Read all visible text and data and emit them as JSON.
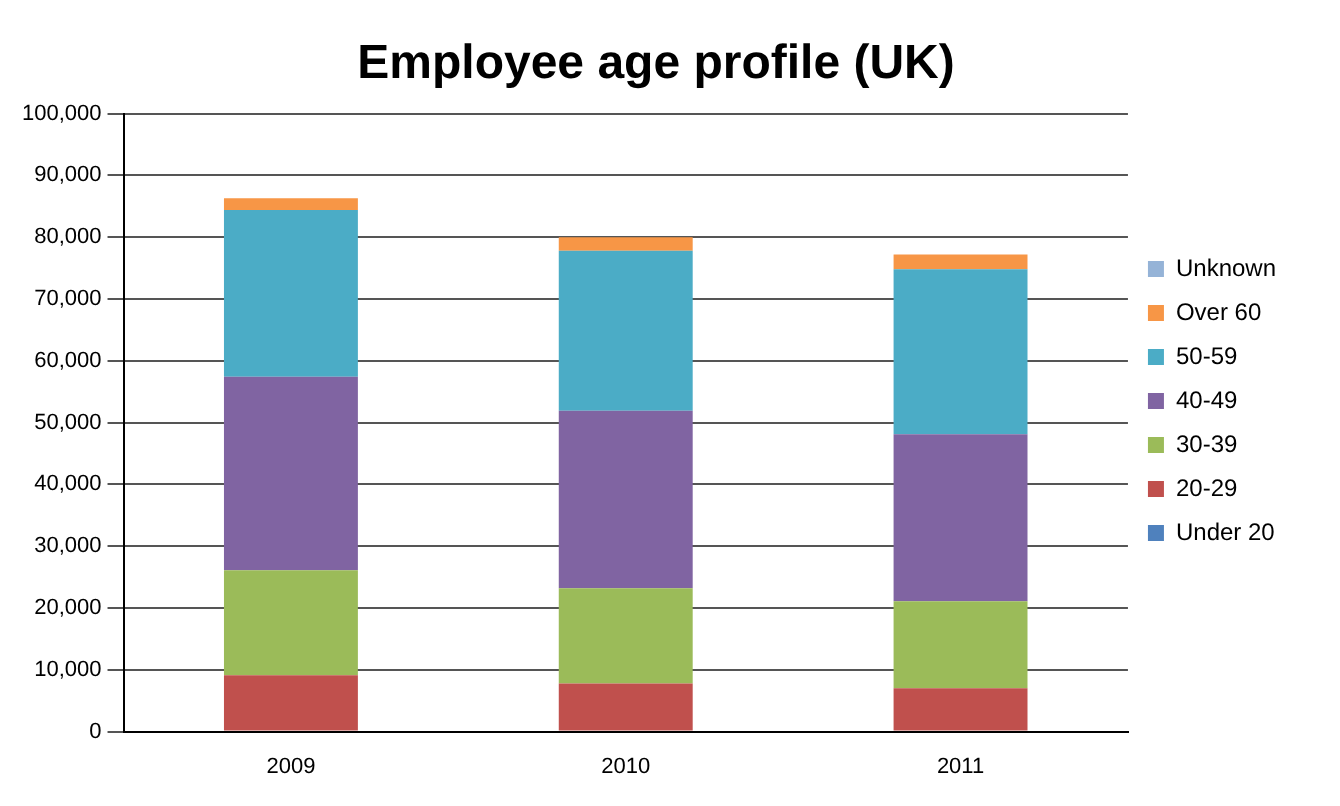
{
  "chart_data": {
    "type": "bar",
    "title": "Employee age profile (UK)",
    "categories": [
      "2009",
      "2010",
      "2011"
    ],
    "stacked": true,
    "series": [
      {
        "name": "Under 20",
        "color": "#4f81bd",
        "values": [
          0,
          0,
          0
        ]
      },
      {
        "name": "20-29",
        "color": "#c0504d",
        "values": [
          9100,
          7800,
          7000
        ]
      },
      {
        "name": "30-39",
        "color": "#9bbb59",
        "values": [
          17000,
          15400,
          14100
        ]
      },
      {
        "name": "40-49",
        "color": "#8064a2",
        "values": [
          31300,
          28700,
          27000
        ]
      },
      {
        "name": "50-59",
        "color": "#4bacc6",
        "values": [
          27000,
          25900,
          26700
        ]
      },
      {
        "name": "Over 60",
        "color": "#f79646",
        "values": [
          1900,
          2200,
          2400
        ]
      },
      {
        "name": "Unknown",
        "color": "#95b3d7",
        "values": [
          0,
          0,
          0
        ]
      }
    ],
    "ylim": [
      0,
      100000
    ],
    "yticks": [
      0,
      {
        "value": 10000,
        "label": "10,000"
      },
      {
        "value": 20000,
        "label": "20,000"
      },
      {
        "value": 30000,
        "label": "30,000"
      },
      {
        "value": 40000,
        "label": "40,000"
      },
      {
        "value": 50000,
        "label": "50,000"
      },
      {
        "value": 60000,
        "label": "60,000"
      },
      {
        "value": 70000,
        "label": "70,000"
      },
      {
        "value": 80000,
        "label": "80,000"
      },
      {
        "value": 90000,
        "label": "90,000"
      },
      {
        "value": 100000,
        "label": "100,000"
      }
    ],
    "grid": "y",
    "legend": "right"
  }
}
